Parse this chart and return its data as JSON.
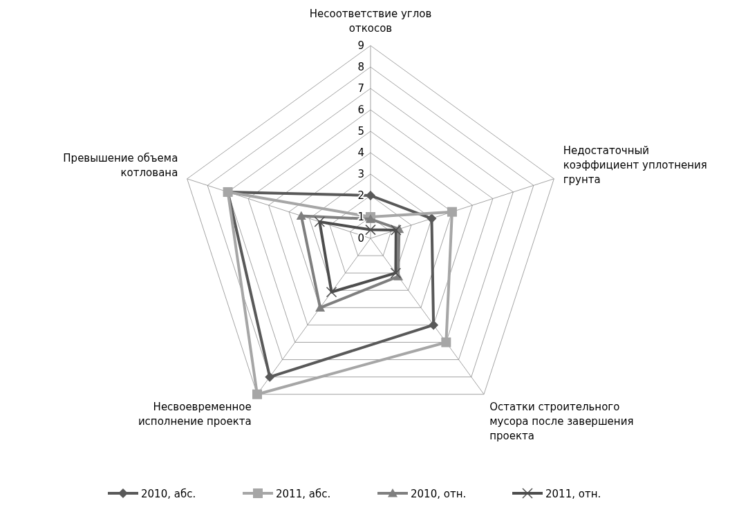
{
  "chart_data": {
    "type": "radar",
    "categories": [
      "Несоответствие углов откосов",
      "Недостаточный коэффициент уплотнения грунта",
      "Остатки строительного мусора после завершения проекта",
      "Несвоевременное исполнение проекта",
      "Превышение объема котлована"
    ],
    "series": [
      {
        "name": "2010, абс.",
        "color": "#595959",
        "marker": "diamond",
        "values": [
          2,
          3,
          5,
          8,
          7
        ]
      },
      {
        "name": "2011, абс.",
        "color": "#a6a6a6",
        "marker": "square",
        "values": [
          1,
          4,
          6,
          9,
          7
        ]
      },
      {
        "name": "2010, отн.",
        "color": "#7f7f7f",
        "marker": "triangle",
        "values": [
          0.9,
          1.4,
          2.2,
          4,
          3.4
        ]
      },
      {
        "name": "2011, отн.",
        "color": "#4d4d4d",
        "marker": "cross",
        "values": [
          0.4,
          1.25,
          2,
          3.1,
          2.5
        ]
      }
    ],
    "ylim": [
      0,
      9
    ],
    "yticks": [
      0,
      1,
      2,
      3,
      4,
      5,
      6,
      7,
      8,
      9
    ],
    "grid": true,
    "legend": "bottom"
  }
}
